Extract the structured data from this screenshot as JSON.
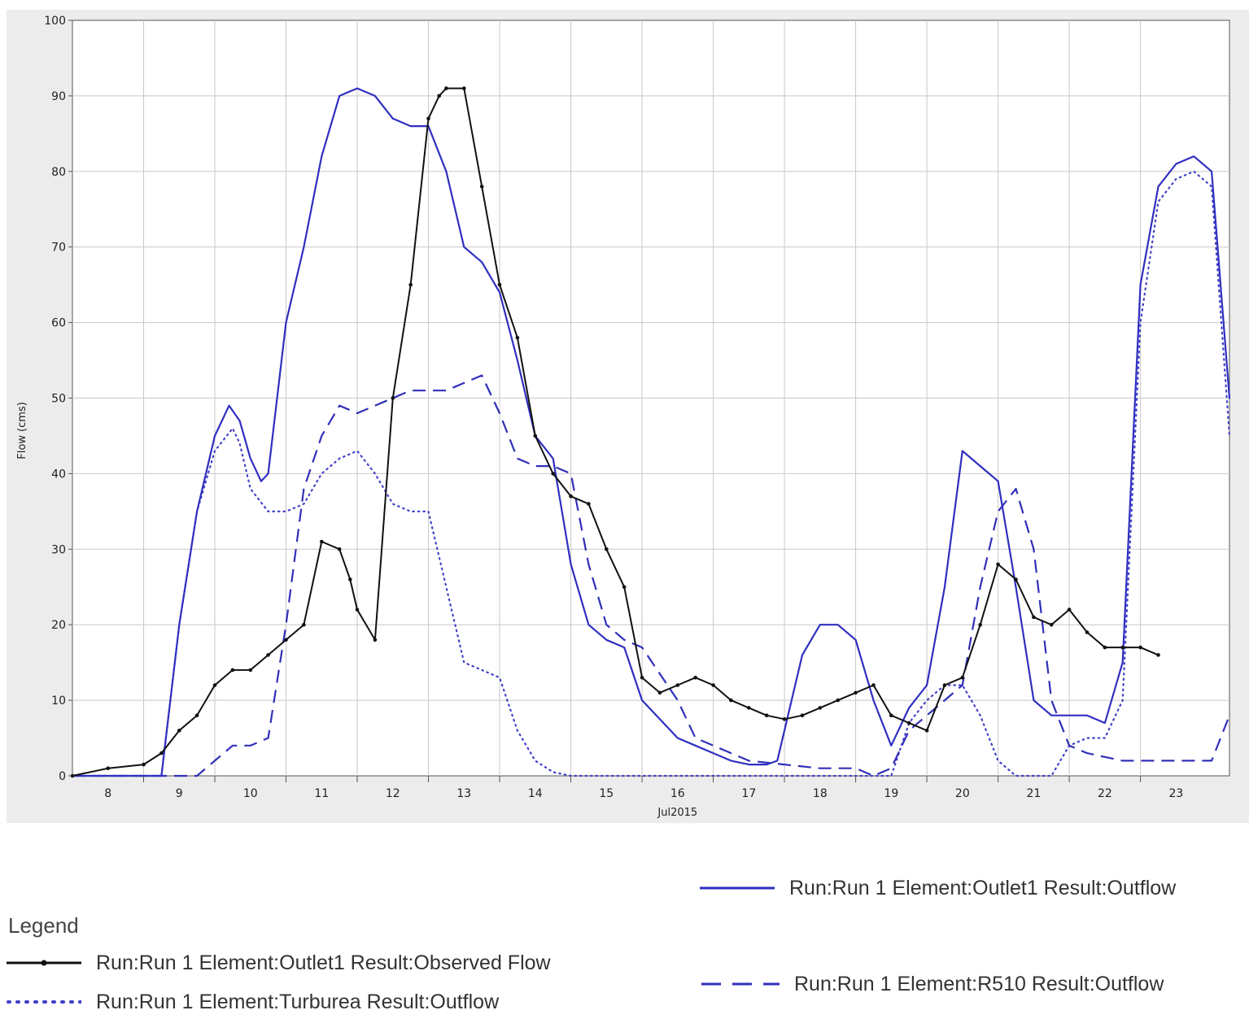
{
  "chart_data": {
    "type": "line",
    "xlabel": "Jul2015",
    "ylabel": "Flow (cms)",
    "xlim": [
      7.5,
      23.75
    ],
    "ylim": [
      0,
      100
    ],
    "yticks": [
      0,
      10,
      20,
      30,
      40,
      50,
      60,
      70,
      80,
      90,
      100
    ],
    "xticks": [
      "8",
      "9",
      "10",
      "11",
      "12",
      "13",
      "14",
      "15",
      "16",
      "17",
      "18",
      "19",
      "20",
      "21",
      "22",
      "23"
    ],
    "grid": true,
    "legend_title": "Legend",
    "series": [
      {
        "name": "Run:Run 1 Element:Outlet1 Result:Outflow",
        "style": "solid",
        "color": "#2f2fc0",
        "x": [
          7.5,
          8.0,
          8.5,
          8.75,
          9.0,
          9.25,
          9.5,
          9.7,
          9.85,
          10.0,
          10.15,
          10.25,
          10.5,
          10.75,
          11.0,
          11.25,
          11.5,
          11.75,
          12.0,
          12.25,
          12.5,
          12.75,
          13.0,
          13.25,
          13.5,
          13.75,
          14.0,
          14.25,
          14.5,
          14.75,
          15.0,
          15.25,
          15.5,
          16.0,
          16.25,
          16.5,
          16.75,
          17.0,
          17.25,
          17.4,
          17.75,
          18.0,
          18.25,
          18.5,
          18.75,
          19.0,
          19.25,
          19.5,
          19.75,
          20.0,
          20.25,
          20.5,
          20.75,
          21.0,
          21.25,
          21.5,
          21.75,
          22.0,
          22.25,
          22.5,
          22.75,
          23.0,
          23.25,
          23.5,
          23.75
        ],
        "y": [
          0,
          0,
          0,
          0,
          20,
          35,
          45,
          49,
          47,
          42,
          39,
          40,
          60,
          70,
          82,
          90,
          91,
          90,
          87,
          86,
          86,
          80,
          70,
          68,
          64,
          55,
          45,
          42,
          28,
          20,
          18,
          17,
          10,
          5,
          4,
          3,
          2,
          1.5,
          1.5,
          2,
          16,
          20,
          20,
          18,
          10,
          4,
          9,
          12,
          25,
          43,
          41,
          39,
          25,
          10,
          8,
          8,
          8,
          7,
          15,
          65,
          78,
          81,
          82,
          80,
          50
        ]
      },
      {
        "name": "Run:Run 1 Element:Outlet1 Result:Observed Flow",
        "style": "solid-markers",
        "color": "#111111",
        "x": [
          7.5,
          8.0,
          8.5,
          8.75,
          9.0,
          9.25,
          9.5,
          9.75,
          10.0,
          10.25,
          10.5,
          10.75,
          11.0,
          11.25,
          11.4,
          11.5,
          11.75,
          12.0,
          12.25,
          12.5,
          12.65,
          12.75,
          13.0,
          13.25,
          13.5,
          13.75,
          14.0,
          14.25,
          14.5,
          14.75,
          15.0,
          15.25,
          15.5,
          15.75,
          16.0,
          16.25,
          16.5,
          16.75,
          17.0,
          17.25,
          17.5,
          17.75,
          18.0,
          18.25,
          18.5,
          18.75,
          19.0,
          19.25,
          19.5,
          19.75,
          20.0,
          20.25,
          20.5,
          20.75,
          21.0,
          21.25,
          21.5,
          21.75,
          22.0,
          22.25,
          22.5,
          22.75
        ],
        "y": [
          0,
          1,
          1.5,
          3,
          6,
          8,
          12,
          14,
          14,
          16,
          18,
          20,
          31,
          30,
          26,
          22,
          18,
          50,
          65,
          87,
          90,
          91,
          91,
          78,
          65,
          58,
          45,
          40,
          37,
          36,
          30,
          25,
          13,
          11,
          12,
          13,
          12,
          10,
          9,
          8,
          7.5,
          8,
          9,
          10,
          11,
          12,
          8,
          7,
          6,
          12,
          13,
          20,
          28,
          26,
          21,
          20,
          22,
          19,
          17,
          17,
          17,
          16
        ]
      },
      {
        "name": "Run:Run 1 Element:Turburea Result:Outflow",
        "style": "dotted",
        "color": "#4040c8",
        "x": [
          7.5,
          8.0,
          8.5,
          8.75,
          9.0,
          9.25,
          9.5,
          9.75,
          9.85,
          10.0,
          10.25,
          10.5,
          10.75,
          11.0,
          11.25,
          11.5,
          11.75,
          12.0,
          12.25,
          12.5,
          12.75,
          13.0,
          13.25,
          13.5,
          13.75,
          14.0,
          14.25,
          14.5,
          15.0,
          16.0,
          17.0,
          18.0,
          18.75,
          19.0,
          19.25,
          19.5,
          19.75,
          20.0,
          20.25,
          20.5,
          20.75,
          21.0,
          21.25,
          21.5,
          21.75,
          22.0,
          22.25,
          22.5,
          22.75,
          23.0,
          23.25,
          23.5,
          23.75
        ],
        "y": [
          0,
          0,
          0,
          0,
          20,
          35,
          43,
          46,
          44,
          38,
          35,
          35,
          36,
          40,
          42,
          43,
          40,
          36,
          35,
          35,
          25,
          15,
          14,
          13,
          6,
          2,
          0.5,
          0,
          0,
          0,
          0,
          0,
          0,
          0,
          7,
          10,
          12,
          12,
          8,
          2,
          0,
          0,
          0,
          4,
          5,
          5,
          10,
          60,
          76,
          79,
          80,
          78,
          45
        ]
      },
      {
        "name": "Run:Run 1 Element:R510 Result:Outflow",
        "style": "dashed",
        "color": "#3030b8",
        "x": [
          7.5,
          8.0,
          8.5,
          9.0,
          9.25,
          9.5,
          9.75,
          10.0,
          10.25,
          10.5,
          10.75,
          11.0,
          11.25,
          11.5,
          11.75,
          12.0,
          12.25,
          12.5,
          12.75,
          13.0,
          13.25,
          13.5,
          13.75,
          14.0,
          14.25,
          14.5,
          14.75,
          15.0,
          15.25,
          15.5,
          16.0,
          16.25,
          16.5,
          17.0,
          17.5,
          18.0,
          18.5,
          18.75,
          19.0,
          19.25,
          19.5,
          19.75,
          20.0,
          20.25,
          20.5,
          20.75,
          21.0,
          21.25,
          21.5,
          21.75,
          22.0,
          22.25,
          22.5,
          22.75,
          23.0,
          23.25,
          23.5,
          23.75
        ],
        "y": [
          0,
          0,
          0,
          0,
          0,
          2,
          4,
          4,
          5,
          20,
          38,
          45,
          49,
          48,
          49,
          50,
          51,
          51,
          51,
          52,
          53,
          48,
          42,
          41,
          41,
          40,
          28,
          20,
          18,
          17,
          10,
          5,
          4,
          2,
          1.5,
          1,
          1,
          0,
          1,
          6,
          8,
          10,
          12,
          25,
          35,
          38,
          30,
          10,
          4,
          3,
          2.5,
          2,
          2,
          2,
          2,
          2,
          2,
          8
        ]
      }
    ]
  }
}
